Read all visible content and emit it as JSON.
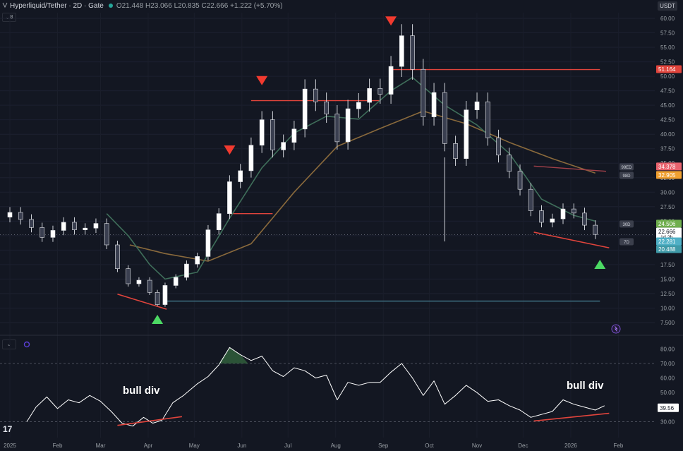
{
  "header": {
    "symbol": "Hyperliquid/Tether · 2D · Gate",
    "ohlc": "O21.448 H23.066 L20.835 C22.666 +1.222 (+5.70%)",
    "currency": "USDT",
    "pane_counter": "8"
  },
  "colors": {
    "background": "#131722",
    "candle": "#ffffff",
    "fast_ma": "#3f6e5a",
    "slow_ma": "#8a6a3c",
    "resistance_line": "#e0443c",
    "support_line": "#3f6f82",
    "sell_marker": "#f23a2f",
    "buy_marker": "#4cd964",
    "rsi_line": "#ffffff"
  },
  "chart_data": [
    {
      "type": "line",
      "title": "Hyperliquid/Tether · 2D · Gate",
      "style": "candlestick",
      "ylabel": "USDT",
      "ylim": [
        7.5,
        60
      ],
      "y_ticks": [
        "60.00",
        "57.50",
        "55.00",
        "52.50",
        "50.00",
        "47.50",
        "45.00",
        "42.50",
        "40.00",
        "37.50",
        "35.00",
        "32.50",
        "30.00",
        "27.50",
        "25.00",
        "22.50",
        "20.00",
        "17.50",
        "15.00",
        "12.50",
        "10.00",
        "7.500"
      ],
      "x_ticks": [
        "2025",
        "Feb",
        "Mar",
        "Apr",
        "May",
        "Jun",
        "Jul",
        "Aug",
        "Sep",
        "Oct",
        "Nov",
        "Dec",
        "2026",
        "Feb"
      ],
      "x_range": [
        "2025-01-01",
        "2026-02-10"
      ],
      "series": [
        {
          "name": "close",
          "points": [
            [
              "2025-01-01",
              26.5
            ],
            [
              "2025-01-08",
              25.3
            ],
            [
              "2025-01-15",
              23.9
            ],
            [
              "2025-01-22",
              22.2
            ],
            [
              "2025-01-29",
              23.4
            ],
            [
              "2025-02-05",
              24.8
            ],
            [
              "2025-02-12",
              23.5
            ],
            [
              "2025-02-19",
              23.8
            ],
            [
              "2025-02-26",
              24.6
            ],
            [
              "2025-03-05",
              20.9
            ],
            [
              "2025-03-12",
              16.8
            ],
            [
              "2025-03-19",
              14.2
            ],
            [
              "2025-03-26",
              14.8
            ],
            [
              "2025-04-02",
              12.7
            ],
            [
              "2025-04-07",
              10.6
            ],
            [
              "2025-04-12",
              13.9
            ],
            [
              "2025-04-19",
              15.3
            ],
            [
              "2025-04-26",
              17.6
            ],
            [
              "2025-05-03",
              18.9
            ],
            [
              "2025-05-10",
              23.5
            ],
            [
              "2025-05-17",
              26.3
            ],
            [
              "2025-05-24",
              31.8
            ],
            [
              "2025-05-31",
              33.7
            ],
            [
              "2025-06-07",
              38.1
            ],
            [
              "2025-06-14",
              42.5
            ],
            [
              "2025-06-21",
              37.3
            ],
            [
              "2025-06-28",
              38.6
            ],
            [
              "2025-07-05",
              40.9
            ],
            [
              "2025-07-12",
              47.8
            ],
            [
              "2025-07-19",
              45.6
            ],
            [
              "2025-07-26",
              43.5
            ],
            [
              "2025-08-02",
              38.7
            ],
            [
              "2025-08-09",
              44.4
            ],
            [
              "2025-08-16",
              45.5
            ],
            [
              "2025-08-23",
              47.9
            ],
            [
              "2025-08-30",
              46.9
            ],
            [
              "2025-09-06",
              51.7
            ],
            [
              "2025-09-13",
              57.0
            ],
            [
              "2025-09-20",
              51.2
            ],
            [
              "2025-09-27",
              43.0
            ],
            [
              "2025-10-04",
              47.2
            ],
            [
              "2025-10-11",
              38.4
            ],
            [
              "2025-10-18",
              35.8
            ],
            [
              "2025-10-25",
              44.2
            ],
            [
              "2025-11-01",
              45.6
            ],
            [
              "2025-11-08",
              39.4
            ],
            [
              "2025-11-15",
              36.4
            ],
            [
              "2025-11-22",
              33.6
            ],
            [
              "2025-11-29",
              30.5
            ],
            [
              "2025-12-06",
              26.8
            ],
            [
              "2025-12-13",
              24.8
            ],
            [
              "2025-12-20",
              25.4
            ],
            [
              "2025-12-27",
              27.1
            ],
            [
              "2026-01-03",
              26.4
            ],
            [
              "2026-01-10",
              24.3
            ],
            [
              "2026-01-17",
              22.7
            ]
          ]
        },
        {
          "name": "fast_ma",
          "points": [
            [
              "2025-03-05",
              26.3
            ],
            [
              "2025-03-19",
              22.5
            ],
            [
              "2025-04-02",
              17.5
            ],
            [
              "2025-04-12",
              15.0
            ],
            [
              "2025-05-03",
              16.2
            ],
            [
              "2025-05-24",
              25.5
            ],
            [
              "2025-06-14",
              34.2
            ],
            [
              "2025-07-05",
              40.2
            ],
            [
              "2025-07-26",
              43.1
            ],
            [
              "2025-08-16",
              42.6
            ],
            [
              "2025-09-06",
              47.5
            ],
            [
              "2025-09-20",
              49.8
            ],
            [
              "2025-10-11",
              45.0
            ],
            [
              "2025-11-01",
              41.6
            ],
            [
              "2025-11-22",
              36.7
            ],
            [
              "2025-12-13",
              28.8
            ],
            [
              "2026-01-03",
              26.0
            ],
            [
              "2026-01-17",
              25.0
            ]
          ]
        },
        {
          "name": "slow_ma",
          "points": [
            [
              "2025-03-20",
              20.9
            ],
            [
              "2025-04-12",
              19.4
            ],
            [
              "2025-05-10",
              18.1
            ],
            [
              "2025-06-07",
              21.1
            ],
            [
              "2025-07-05",
              30.0
            ],
            [
              "2025-08-02",
              37.9
            ],
            [
              "2025-08-30",
              41.0
            ],
            [
              "2025-09-27",
              44.0
            ],
            [
              "2025-10-25",
              41.8
            ],
            [
              "2025-11-22",
              38.6
            ],
            [
              "2025-12-20",
              35.8
            ],
            [
              "2026-01-17",
              33.3
            ]
          ]
        }
      ],
      "price_labels": [
        {
          "value": "51.164"
        },
        {
          "value": "34.378",
          "tag": "99ED"
        },
        {
          "value": "32.905",
          "tag": "98D"
        },
        {
          "value": "24.506",
          "tag": "30D"
        },
        {
          "value": "22.666",
          "sub": "1d 2h"
        },
        {
          "value": "22.281",
          "tag": "7D"
        },
        {
          "value": "20.488"
        }
      ],
      "levels": [
        {
          "value": 26.3,
          "from": "2025-05-24",
          "to": "2025-06-21"
        },
        {
          "value": 45.8,
          "from": "2025-06-07",
          "to": "2025-08-30"
        },
        {
          "value": 51.16,
          "from": "2025-09-06",
          "to": "2026-01-20"
        },
        {
          "value": 11.2,
          "from": "2025-04-12",
          "to": "2026-01-20"
        }
      ],
      "sell_markers": [
        "2025-05-24",
        "2025-06-14",
        "2025-09-06"
      ],
      "buy_markers": [
        "2025-04-07",
        "2026-01-20"
      ],
      "trendlines": [
        {
          "from": [
            "2025-03-12",
            12.4
          ],
          "to": [
            "2025-04-13",
            9.8
          ]
        },
        {
          "from": [
            "2025-12-08",
            23.1
          ],
          "to": [
            "2026-01-26",
            20.4
          ]
        }
      ]
    },
    {
      "type": "line",
      "ylim": [
        22,
        85
      ],
      "y_ticks": [
        "80.00",
        "70.00",
        "60.00",
        "50.00",
        "40.00",
        "30.00"
      ],
      "levels": [
        70,
        30
      ],
      "current_value": "39.56",
      "series": [
        {
          "name": "rsi",
          "points": [
            [
              "2025-01-12",
              30
            ],
            [
              "2025-01-18",
              40
            ],
            [
              "2025-01-25",
              47
            ],
            [
              "2025-02-01",
              39
            ],
            [
              "2025-02-08",
              45
            ],
            [
              "2025-02-15",
              43
            ],
            [
              "2025-02-22",
              48
            ],
            [
              "2025-03-01",
              44
            ],
            [
              "2025-03-08",
              37
            ],
            [
              "2025-03-15",
              29
            ],
            [
              "2025-03-22",
              27
            ],
            [
              "2025-03-29",
              33
            ],
            [
              "2025-04-04",
              29
            ],
            [
              "2025-04-10",
              31
            ],
            [
              "2025-04-17",
              43
            ],
            [
              "2025-04-24",
              48
            ],
            [
              "2025-05-03",
              56
            ],
            [
              "2025-05-10",
              61
            ],
            [
              "2025-05-17",
              69
            ],
            [
              "2025-05-24",
              81
            ],
            [
              "2025-05-31",
              76
            ],
            [
              "2025-06-07",
              72
            ],
            [
              "2025-06-14",
              75
            ],
            [
              "2025-06-21",
              65
            ],
            [
              "2025-06-28",
              61
            ],
            [
              "2025-07-05",
              67
            ],
            [
              "2025-07-12",
              65
            ],
            [
              "2025-07-19",
              60
            ],
            [
              "2025-07-26",
              62
            ],
            [
              "2025-08-02",
              45
            ],
            [
              "2025-08-09",
              57
            ],
            [
              "2025-08-16",
              55
            ],
            [
              "2025-08-23",
              57
            ],
            [
              "2025-08-30",
              57
            ],
            [
              "2025-09-06",
              64
            ],
            [
              "2025-09-13",
              70
            ],
            [
              "2025-09-20",
              60
            ],
            [
              "2025-09-27",
              48
            ],
            [
              "2025-10-04",
              58
            ],
            [
              "2025-10-11",
              42
            ],
            [
              "2025-10-18",
              48
            ],
            [
              "2025-10-25",
              55
            ],
            [
              "2025-11-01",
              50
            ],
            [
              "2025-11-08",
              44
            ],
            [
              "2025-11-15",
              45
            ],
            [
              "2025-11-22",
              41
            ],
            [
              "2025-11-29",
              38
            ],
            [
              "2025-12-06",
              33
            ],
            [
              "2025-12-13",
              35
            ],
            [
              "2025-12-20",
              37
            ],
            [
              "2025-12-27",
              45
            ],
            [
              "2026-01-03",
              42
            ],
            [
              "2026-01-10",
              40
            ],
            [
              "2026-01-17",
              38
            ],
            [
              "2026-01-23",
              41
            ]
          ]
        }
      ],
      "annotations": [
        "bull div",
        "bull div"
      ],
      "trendlines": [
        {
          "from": [
            "2025-03-12",
            27.5
          ],
          "to": [
            "2025-04-23",
            33.5
          ]
        },
        {
          "from": [
            "2025-12-08",
            30.5
          ],
          "to": [
            "2026-01-26",
            35.8
          ]
        }
      ]
    }
  ]
}
